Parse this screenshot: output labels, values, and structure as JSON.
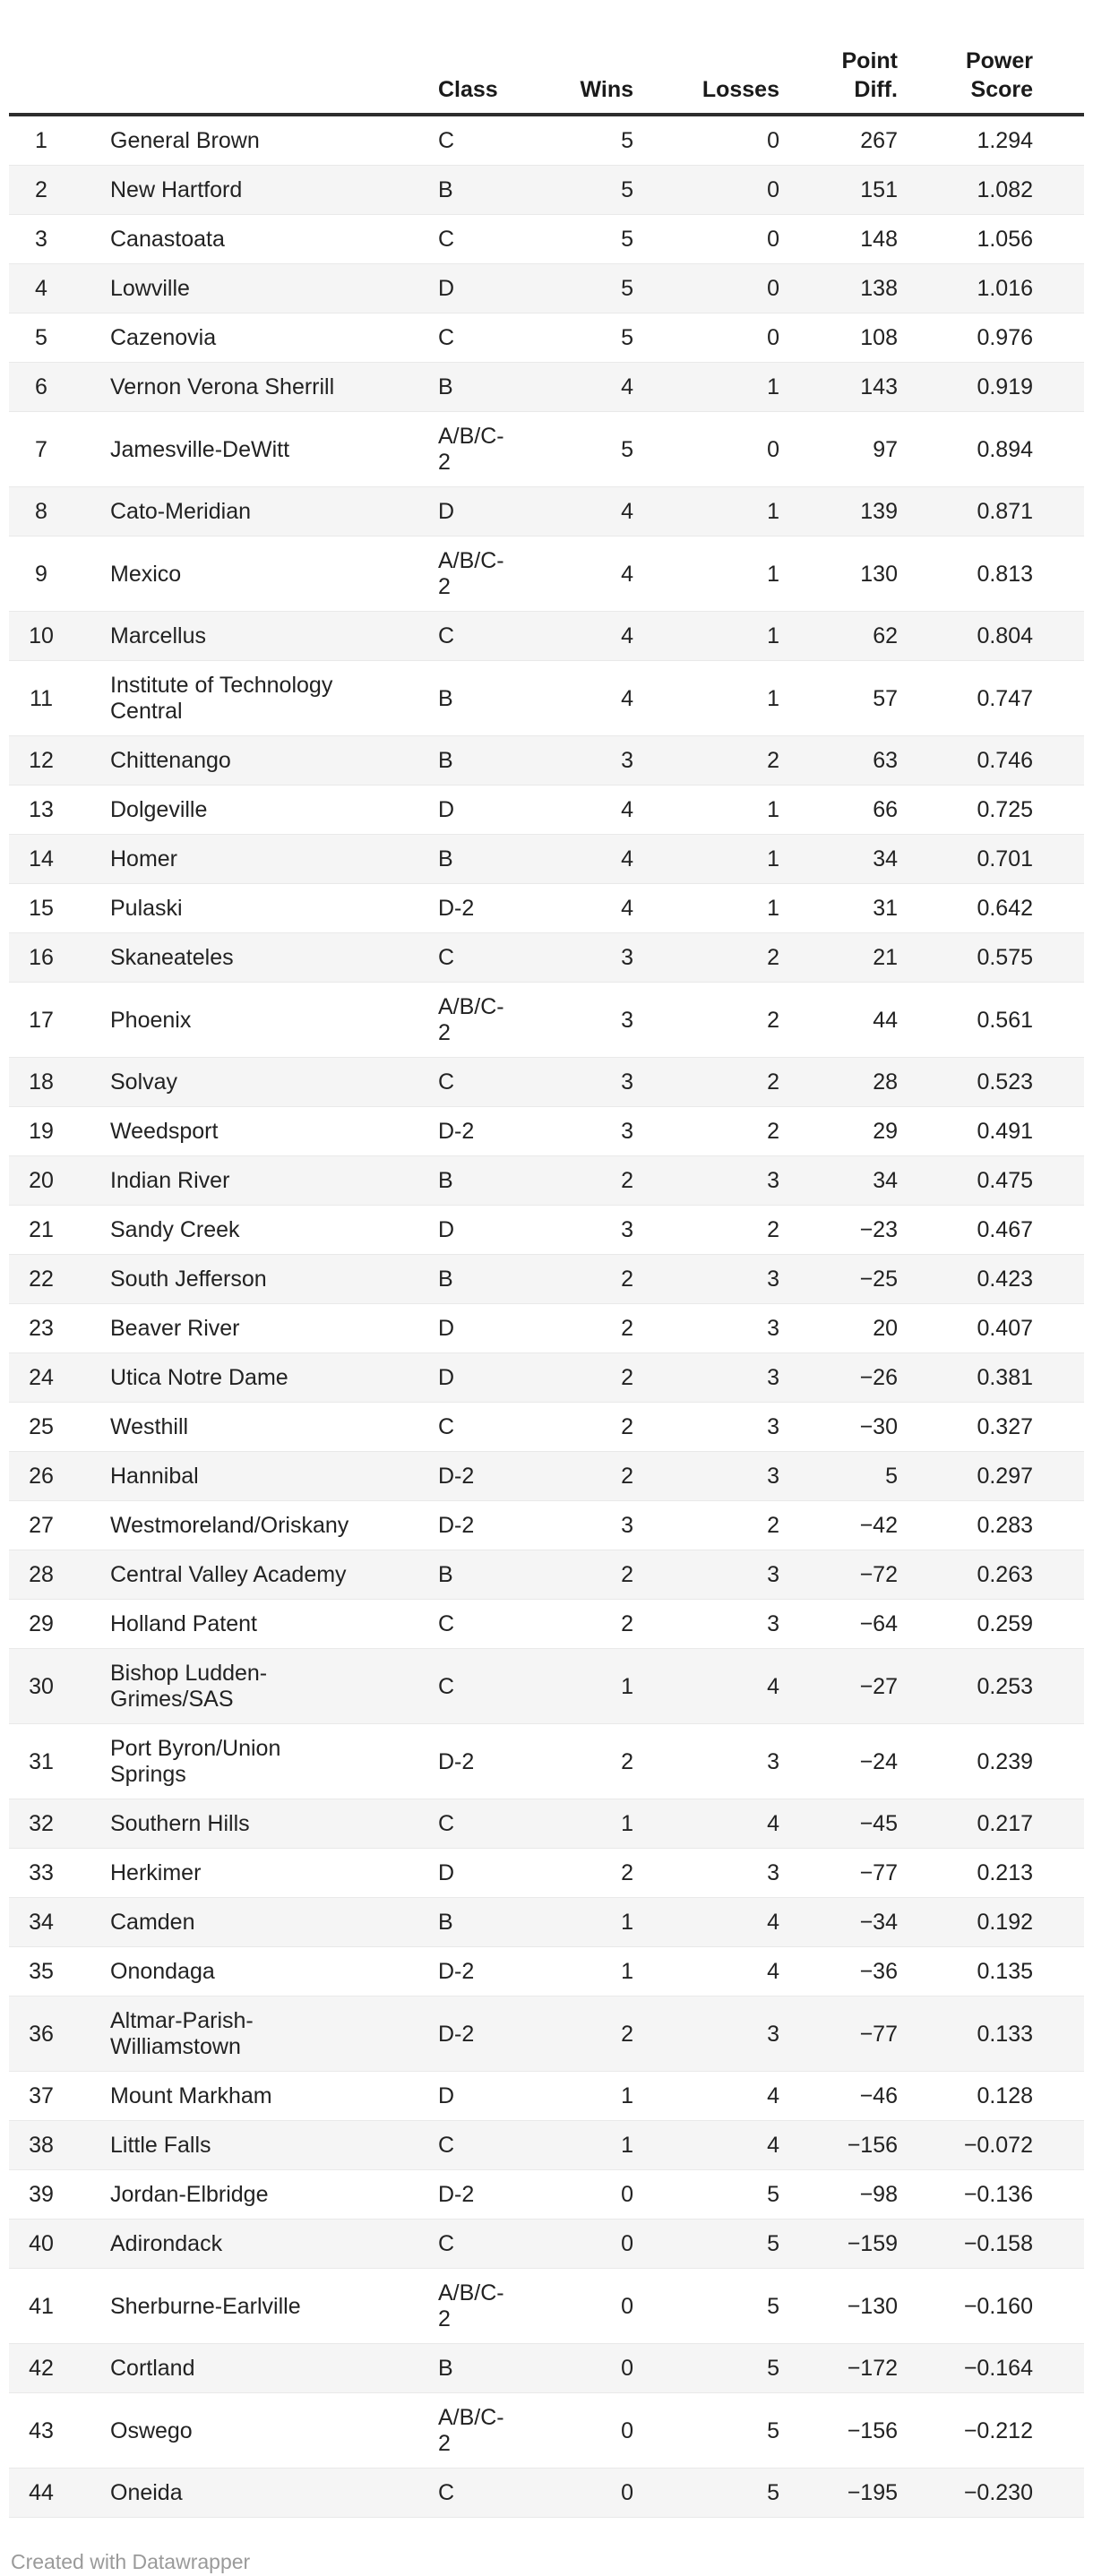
{
  "chart_data": {
    "type": "table",
    "columns": [
      {
        "key": "rank",
        "label": ""
      },
      {
        "key": "team",
        "label": ""
      },
      {
        "key": "class",
        "label": "Class"
      },
      {
        "key": "wins",
        "label": "Wins"
      },
      {
        "key": "losses",
        "label": "Losses"
      },
      {
        "key": "point_diff",
        "label": "Point Diff."
      },
      {
        "key": "power_score",
        "label": "Power Score"
      }
    ],
    "rows": [
      {
        "rank": "1",
        "team": "General Brown",
        "class": "C",
        "wins": "5",
        "losses": "0",
        "point_diff": "267",
        "power_score": "1.294"
      },
      {
        "rank": "2",
        "team": "New Hartford",
        "class": "B",
        "wins": "5",
        "losses": "0",
        "point_diff": "151",
        "power_score": "1.082"
      },
      {
        "rank": "3",
        "team": "Canastoata",
        "class": "C",
        "wins": "5",
        "losses": "0",
        "point_diff": "148",
        "power_score": "1.056"
      },
      {
        "rank": "4",
        "team": "Lowville",
        "class": "D",
        "wins": "5",
        "losses": "0",
        "point_diff": "138",
        "power_score": "1.016"
      },
      {
        "rank": "5",
        "team": "Cazenovia",
        "class": "C",
        "wins": "5",
        "losses": "0",
        "point_diff": "108",
        "power_score": "0.976"
      },
      {
        "rank": "6",
        "team": "Vernon Verona Sherrill",
        "class": "B",
        "wins": "4",
        "losses": "1",
        "point_diff": "143",
        "power_score": "0.919"
      },
      {
        "rank": "7",
        "team": "Jamesville-DeWitt",
        "class": "A/B/C-2",
        "wins": "5",
        "losses": "0",
        "point_diff": "97",
        "power_score": "0.894"
      },
      {
        "rank": "8",
        "team": "Cato-Meridian",
        "class": "D",
        "wins": "4",
        "losses": "1",
        "point_diff": "139",
        "power_score": "0.871"
      },
      {
        "rank": "9",
        "team": "Mexico",
        "class": "A/B/C-2",
        "wins": "4",
        "losses": "1",
        "point_diff": "130",
        "power_score": "0.813"
      },
      {
        "rank": "10",
        "team": "Marcellus",
        "class": "C",
        "wins": "4",
        "losses": "1",
        "point_diff": "62",
        "power_score": "0.804"
      },
      {
        "rank": "11",
        "team": "Institute of Technology Central",
        "class": "B",
        "wins": "4",
        "losses": "1",
        "point_diff": "57",
        "power_score": "0.747"
      },
      {
        "rank": "12",
        "team": "Chittenango",
        "class": "B",
        "wins": "3",
        "losses": "2",
        "point_diff": "63",
        "power_score": "0.746"
      },
      {
        "rank": "13",
        "team": "Dolgeville",
        "class": "D",
        "wins": "4",
        "losses": "1",
        "point_diff": "66",
        "power_score": "0.725"
      },
      {
        "rank": "14",
        "team": "Homer",
        "class": "B",
        "wins": "4",
        "losses": "1",
        "point_diff": "34",
        "power_score": "0.701"
      },
      {
        "rank": "15",
        "team": "Pulaski",
        "class": "D-2",
        "wins": "4",
        "losses": "1",
        "point_diff": "31",
        "power_score": "0.642"
      },
      {
        "rank": "16",
        "team": "Skaneateles",
        "class": "C",
        "wins": "3",
        "losses": "2",
        "point_diff": "21",
        "power_score": "0.575"
      },
      {
        "rank": "17",
        "team": "Phoenix",
        "class": "A/B/C-2",
        "wins": "3",
        "losses": "2",
        "point_diff": "44",
        "power_score": "0.561"
      },
      {
        "rank": "18",
        "team": "Solvay",
        "class": "C",
        "wins": "3",
        "losses": "2",
        "point_diff": "28",
        "power_score": "0.523"
      },
      {
        "rank": "19",
        "team": "Weedsport",
        "class": "D-2",
        "wins": "3",
        "losses": "2",
        "point_diff": "29",
        "power_score": "0.491"
      },
      {
        "rank": "20",
        "team": "Indian River",
        "class": "B",
        "wins": "2",
        "losses": "3",
        "point_diff": "34",
        "power_score": "0.475"
      },
      {
        "rank": "21",
        "team": "Sandy Creek",
        "class": "D",
        "wins": "3",
        "losses": "2",
        "point_diff": "−23",
        "power_score": "0.467"
      },
      {
        "rank": "22",
        "team": "South Jefferson",
        "class": "B",
        "wins": "2",
        "losses": "3",
        "point_diff": "−25",
        "power_score": "0.423"
      },
      {
        "rank": "23",
        "team": "Beaver River",
        "class": "D",
        "wins": "2",
        "losses": "3",
        "point_diff": "20",
        "power_score": "0.407"
      },
      {
        "rank": "24",
        "team": "Utica Notre Dame",
        "class": "D",
        "wins": "2",
        "losses": "3",
        "point_diff": "−26",
        "power_score": "0.381"
      },
      {
        "rank": "25",
        "team": "Westhill",
        "class": "C",
        "wins": "2",
        "losses": "3",
        "point_diff": "−30",
        "power_score": "0.327"
      },
      {
        "rank": "26",
        "team": "Hannibal",
        "class": "D-2",
        "wins": "2",
        "losses": "3",
        "point_diff": "5",
        "power_score": "0.297"
      },
      {
        "rank": "27",
        "team": "Westmoreland/Oriskany",
        "class": "D-2",
        "wins": "3",
        "losses": "2",
        "point_diff": "−42",
        "power_score": "0.283"
      },
      {
        "rank": "28",
        "team": "Central Valley Academy",
        "class": "B",
        "wins": "2",
        "losses": "3",
        "point_diff": "−72",
        "power_score": "0.263"
      },
      {
        "rank": "29",
        "team": "Holland Patent",
        "class": "C",
        "wins": "2",
        "losses": "3",
        "point_diff": "−64",
        "power_score": "0.259"
      },
      {
        "rank": "30",
        "team": "Bishop Ludden-Grimes/SAS",
        "class": "C",
        "wins": "1",
        "losses": "4",
        "point_diff": "−27",
        "power_score": "0.253"
      },
      {
        "rank": "31",
        "team": "Port Byron/Union Springs",
        "class": "D-2",
        "wins": "2",
        "losses": "3",
        "point_diff": "−24",
        "power_score": "0.239"
      },
      {
        "rank": "32",
        "team": "Southern Hills",
        "class": "C",
        "wins": "1",
        "losses": "4",
        "point_diff": "−45",
        "power_score": "0.217"
      },
      {
        "rank": "33",
        "team": "Herkimer",
        "class": "D",
        "wins": "2",
        "losses": "3",
        "point_diff": "−77",
        "power_score": "0.213"
      },
      {
        "rank": "34",
        "team": "Camden",
        "class": "B",
        "wins": "1",
        "losses": "4",
        "point_diff": "−34",
        "power_score": "0.192"
      },
      {
        "rank": "35",
        "team": "Onondaga",
        "class": "D-2",
        "wins": "1",
        "losses": "4",
        "point_diff": "−36",
        "power_score": "0.135"
      },
      {
        "rank": "36",
        "team": "Altmar-Parish-Williamstown",
        "class": "D-2",
        "wins": "2",
        "losses": "3",
        "point_diff": "−77",
        "power_score": "0.133"
      },
      {
        "rank": "37",
        "team": "Mount Markham",
        "class": "D",
        "wins": "1",
        "losses": "4",
        "point_diff": "−46",
        "power_score": "0.128"
      },
      {
        "rank": "38",
        "team": "Little Falls",
        "class": "C",
        "wins": "1",
        "losses": "4",
        "point_diff": "−156",
        "power_score": "−0.072"
      },
      {
        "rank": "39",
        "team": "Jordan-Elbridge",
        "class": "D-2",
        "wins": "0",
        "losses": "5",
        "point_diff": "−98",
        "power_score": "−0.136"
      },
      {
        "rank": "40",
        "team": "Adirondack",
        "class": "C",
        "wins": "0",
        "losses": "5",
        "point_diff": "−159",
        "power_score": "−0.158"
      },
      {
        "rank": "41",
        "team": "Sherburne-Earlville",
        "class": "A/B/C-2",
        "wins": "0",
        "losses": "5",
        "point_diff": "−130",
        "power_score": "−0.160"
      },
      {
        "rank": "42",
        "team": "Cortland",
        "class": "B",
        "wins": "0",
        "losses": "5",
        "point_diff": "−172",
        "power_score": "−0.164"
      },
      {
        "rank": "43",
        "team": "Oswego",
        "class": "A/B/C-2",
        "wins": "0",
        "losses": "5",
        "point_diff": "−156",
        "power_score": "−0.212"
      },
      {
        "rank": "44",
        "team": "Oneida",
        "class": "C",
        "wins": "0",
        "losses": "5",
        "point_diff": "−195",
        "power_score": "−0.230"
      }
    ]
  },
  "footer": {
    "credit": "Created with Datawrapper"
  },
  "colors": {
    "text": "#222222",
    "header_text": "#1a1a1a",
    "header_rule": "#2d2d2d",
    "row_stripe": "#f5f5f5",
    "row_border": "#e9e9e9",
    "muted": "#9a9a9a",
    "background": "#ffffff"
  }
}
